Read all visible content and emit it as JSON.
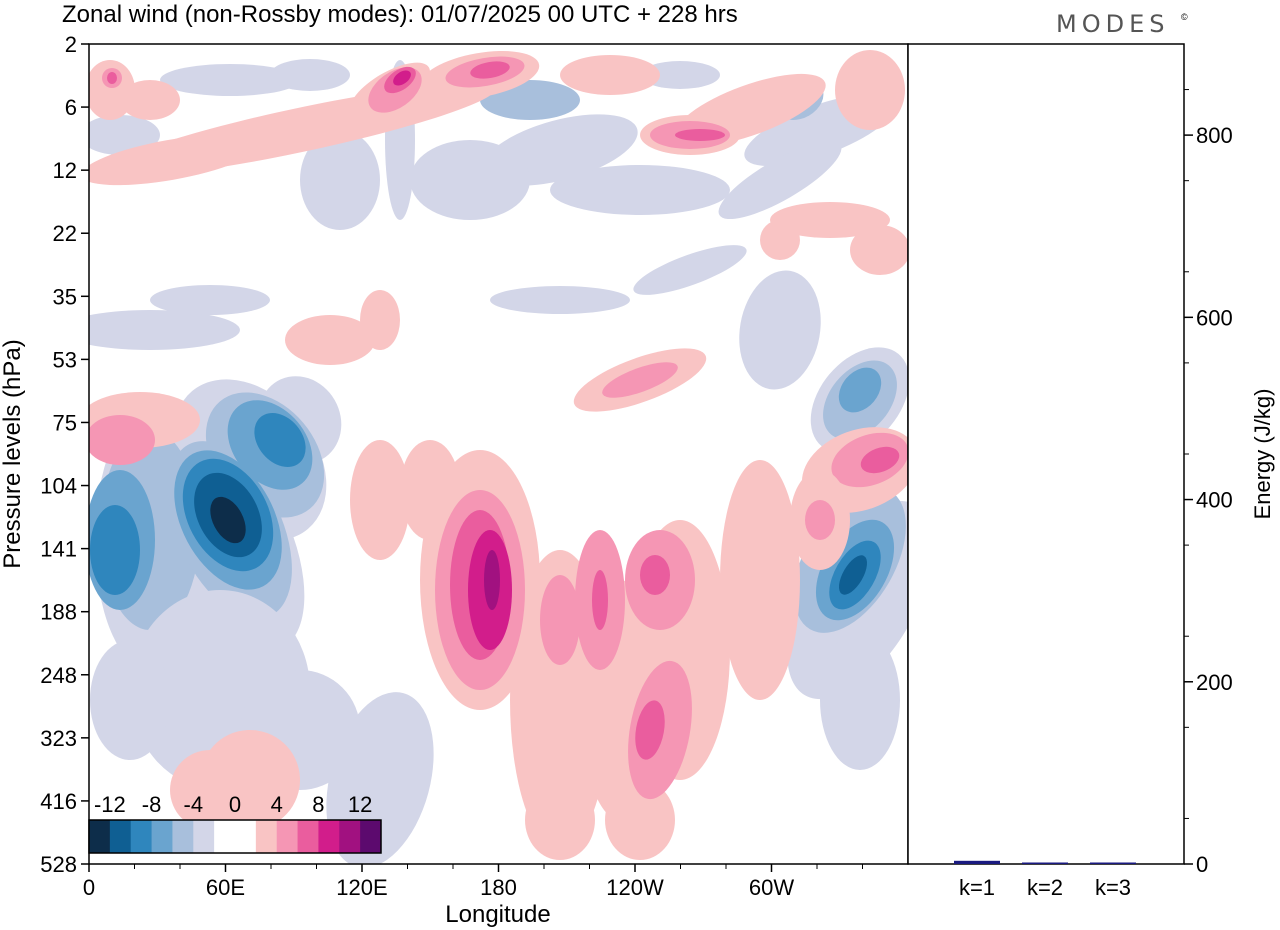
{
  "title": "Zonal wind (non-Rossby modes):  01/07/2025  00 UTC  + 228 hrs",
  "brand": "MODES",
  "chart_data": [
    {
      "type": "heatmap",
      "xlabel": "Longitude",
      "ylabel": "Pressure levels (hPa)",
      "x_ticks": [
        "0",
        "60E",
        "120E",
        "180",
        "120W",
        "60W"
      ],
      "y_ticks": [
        "2",
        "6",
        "12",
        "22",
        "35",
        "53",
        "75",
        "104",
        "141",
        "188",
        "248",
        "323",
        "416",
        "528"
      ],
      "colorbar": {
        "tick_labels": [
          "-12",
          "-8",
          "-4",
          "0",
          "4",
          "8",
          "12"
        ],
        "colors": [
          "#0d2d4a",
          "#0f5f93",
          "#2f86bd",
          "#6aa4cf",
          "#a8bfdc",
          "#d3d6e8",
          "#ffffff",
          "#ffffff",
          "#f9c4c4",
          "#f596b4",
          "#ea5d9e",
          "#d21d8b",
          "#a11180",
          "#5c0a6e"
        ]
      },
      "features": [
        {
          "sign": "neg",
          "level": 5,
          "lon": 22,
          "p": 141
        },
        {
          "sign": "neg",
          "level": 5,
          "lon": 60,
          "p": 141
        },
        {
          "sign": "neg",
          "level": 5,
          "lon": 335,
          "p": 175
        },
        {
          "sign": "pos",
          "level": 4,
          "lon": 175,
          "p": 145
        },
        {
          "sign": "pos",
          "level": 3,
          "lon": 137,
          "p": 5
        },
        {
          "sign": "pos",
          "level": 3,
          "lon": 350,
          "p": 105
        },
        {
          "sign": "pos",
          "level": 2,
          "lon": 245,
          "p": 8
        },
        {
          "sign": "pos",
          "level": 2,
          "lon": 245,
          "p": 290
        },
        {
          "sign": "pos",
          "level": 2,
          "lon": 215,
          "p": 165
        }
      ]
    },
    {
      "type": "bar",
      "ylabel": "Energy (J/kg)",
      "categories": [
        "k=1",
        "k=2",
        "k=3"
      ],
      "values": [
        3.5,
        1.2,
        0.5
      ],
      "ylim": [
        0,
        900
      ],
      "y_ticks": [
        0,
        200,
        400,
        600,
        800
      ],
      "bar_color": "#1a1a80"
    }
  ]
}
